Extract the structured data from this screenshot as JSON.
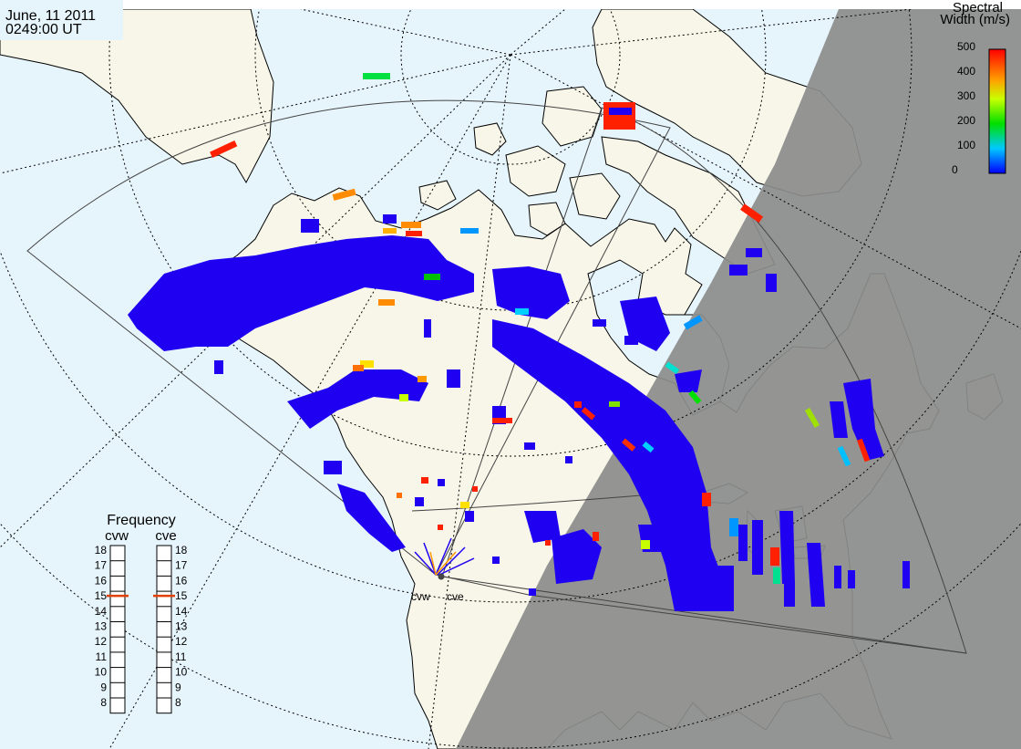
{
  "header": {
    "date": "June, 11 2011",
    "time": "0249:00 UT"
  },
  "colorbar": {
    "title_line1": "Spectral",
    "title_line2": "Width (m/s)",
    "ticks": [
      "500",
      "400",
      "300",
      "200",
      "100",
      "0"
    ]
  },
  "frequency_panel": {
    "title": "Frequency",
    "radars": [
      {
        "name": "cvw",
        "selected_mhz": 15
      },
      {
        "name": "cve",
        "selected_mhz": 15
      }
    ],
    "levels": [
      "18",
      "17",
      "16",
      "15",
      "14",
      "13",
      "12",
      "11",
      "10",
      "9",
      "8"
    ]
  },
  "site_labels": [
    "cvw",
    "cve"
  ],
  "colors": {
    "ocean": "#e6f4fb",
    "land": "#f7f6e8",
    "night": "#8c8c8c",
    "scatter_dominant": "#1f00f0"
  }
}
